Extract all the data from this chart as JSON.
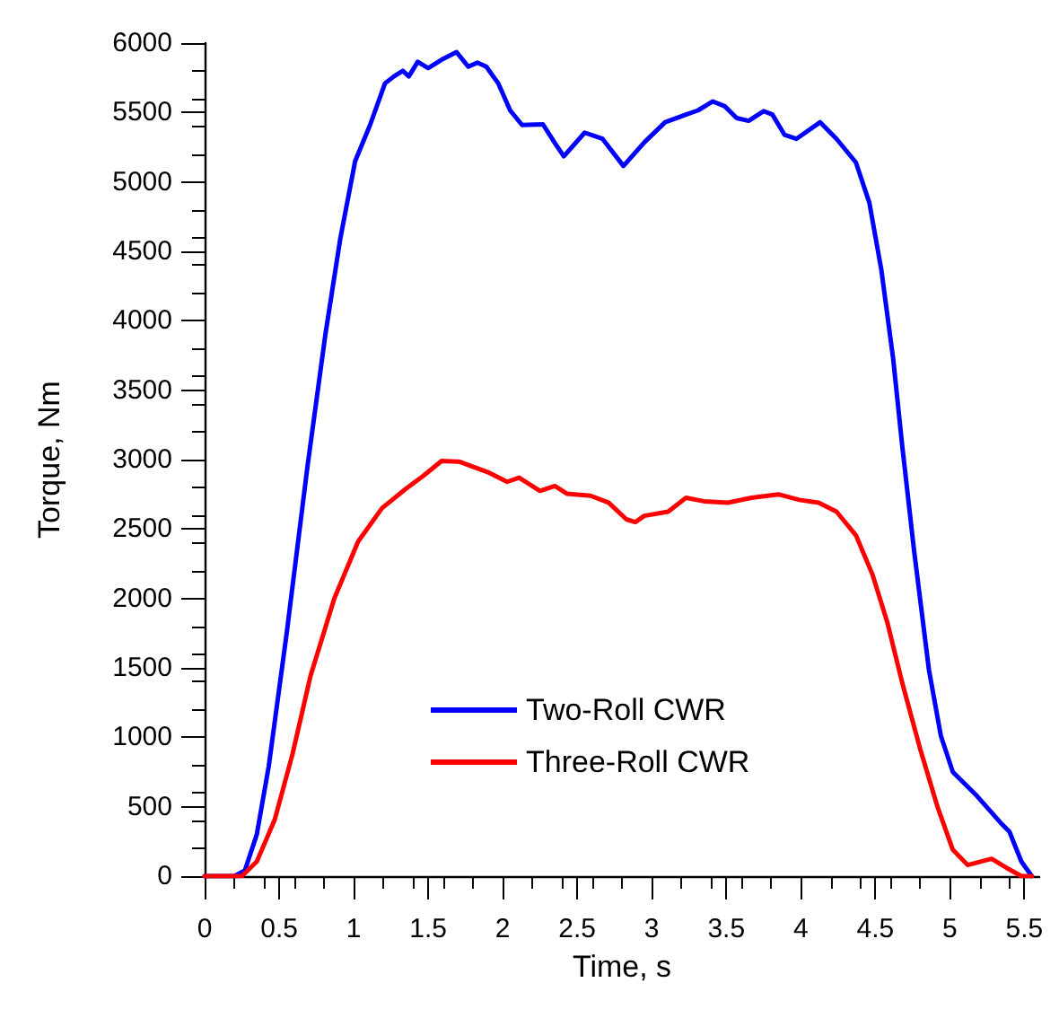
{
  "chart_data": {
    "type": "line",
    "xlabel": "Time, s",
    "ylabel": "Torque, Nm",
    "xlim": [
      0,
      5.6
    ],
    "xticks": [
      0,
      0.5,
      1,
      1.5,
      2,
      2.5,
      3,
      3.5,
      4,
      4.5,
      5,
      5.5
    ],
    "ylim": [
      0,
      6000
    ],
    "yticks": [
      0,
      500,
      1000,
      1500,
      2000,
      2500,
      3000,
      3500,
      4000,
      4500,
      5000,
      5500,
      6000
    ],
    "grid": false,
    "legend": "bottom",
    "marker": "none",
    "line_style": "solid",
    "series": [
      {
        "name": "Two-Roll CWR",
        "color": "#0000ff",
        "x": [
          0,
          0.2,
          0.27,
          0.35,
          0.43,
          0.55,
          0.69,
          0.81,
          0.91,
          1.01,
          1.11,
          1.21,
          1.27,
          1.33,
          1.37,
          1.43,
          1.5,
          1.59,
          1.69,
          1.77,
          1.83,
          1.89,
          1.97,
          2.05,
          2.13,
          2.27,
          2.35,
          2.41,
          2.55,
          2.67,
          2.81,
          2.95,
          3.09,
          3.23,
          3.31,
          3.41,
          3.49,
          3.57,
          3.65,
          3.75,
          3.81,
          3.89,
          3.97,
          4.13,
          4.24,
          4.37,
          4.46,
          4.54,
          4.62,
          4.68,
          4.76,
          4.86,
          4.94,
          5.02,
          5.18,
          5.34,
          5.4,
          5.48,
          5.55
        ],
        "values": [
          0,
          0,
          40,
          300,
          790,
          1745,
          2950,
          3900,
          4590,
          5150,
          5410,
          5710,
          5760,
          5800,
          5760,
          5865,
          5820,
          5880,
          5935,
          5830,
          5860,
          5830,
          5710,
          5515,
          5410,
          5415,
          5280,
          5185,
          5355,
          5310,
          5115,
          5285,
          5430,
          5485,
          5515,
          5580,
          5545,
          5460,
          5440,
          5510,
          5485,
          5340,
          5310,
          5430,
          5310,
          5140,
          4850,
          4370,
          3725,
          3105,
          2345,
          1485,
          1010,
          750,
          580,
          385,
          320,
          105,
          0
        ]
      },
      {
        "name": "Three-Roll CWR",
        "color": "#ff0000",
        "x": [
          0,
          0.25,
          0.35,
          0.47,
          0.59,
          0.71,
          0.87,
          1.03,
          1.19,
          1.35,
          1.47,
          1.59,
          1.71,
          1.91,
          2.03,
          2.11,
          2.25,
          2.35,
          2.43,
          2.59,
          2.71,
          2.83,
          2.89,
          2.95,
          3.11,
          3.23,
          3.35,
          3.51,
          3.67,
          3.85,
          3.99,
          4.12,
          4.24,
          4.37,
          4.48,
          4.58,
          4.68,
          4.8,
          4.92,
          5.02,
          5.12,
          5.28,
          5.38,
          5.48,
          5.55
        ],
        "values": [
          0,
          0,
          105,
          405,
          880,
          1440,
          2000,
          2410,
          2650,
          2790,
          2885,
          2990,
          2985,
          2905,
          2840,
          2870,
          2775,
          2810,
          2755,
          2740,
          2690,
          2570,
          2550,
          2595,
          2625,
          2725,
          2700,
          2690,
          2725,
          2750,
          2710,
          2690,
          2625,
          2455,
          2175,
          1830,
          1395,
          920,
          490,
          190,
          80,
          125,
          60,
          0,
          0
        ]
      }
    ]
  }
}
